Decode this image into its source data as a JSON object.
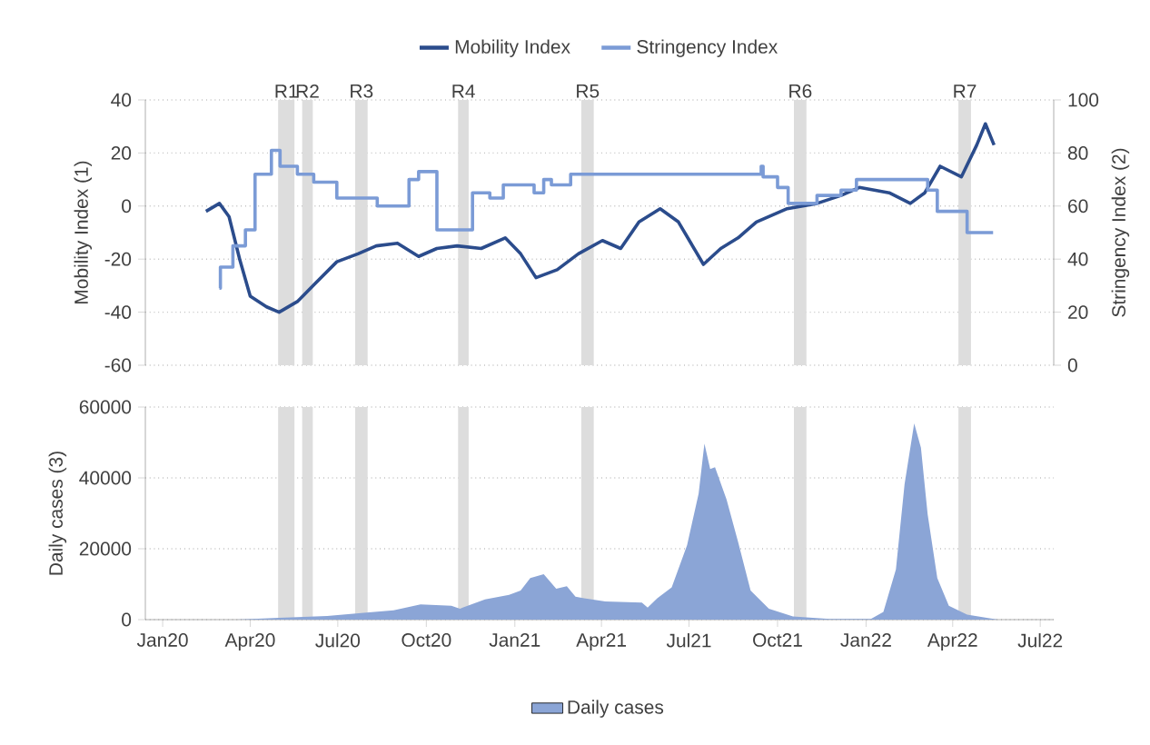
{
  "chart_data": [
    {
      "type": "line",
      "ylabel": "Mobility Index (1)",
      "y2label": "Stringency Index (2)",
      "xlim": [
        "2019-12-14",
        "2022-07-15"
      ],
      "ylim": [
        -60,
        40
      ],
      "yticks": [
        -60,
        -40,
        -20,
        0,
        20,
        40
      ],
      "y2lim": [
        0,
        100
      ],
      "y2ticks": [
        0,
        20,
        40,
        60,
        80,
        100
      ],
      "grid": "y",
      "legend": "top",
      "tick_labels": "y",
      "series": [
        {
          "name": "Mobility Index",
          "type": "line",
          "color": "#2b4c8c",
          "x": [
            "2020-02-15",
            "2020-02-29",
            "2020-03-10",
            "2020-03-21",
            "2020-04-01",
            "2020-04-18",
            "2020-05-01",
            "2020-05-20",
            "2020-06-08",
            "2020-06-30",
            "2020-07-22",
            "2020-08-10",
            "2020-09-01",
            "2020-09-23",
            "2020-10-12",
            "2020-11-02",
            "2020-11-27",
            "2020-12-22",
            "2021-01-07",
            "2021-01-23",
            "2021-02-14",
            "2021-03-08",
            "2021-04-02",
            "2021-04-21",
            "2021-05-10",
            "2021-06-01",
            "2021-06-20",
            "2021-07-16",
            "2021-08-03",
            "2021-08-21",
            "2021-09-09",
            "2021-10-11",
            "2021-11-11",
            "2021-12-06",
            "2021-12-25",
            "2022-01-25",
            "2022-02-16",
            "2022-03-03",
            "2022-03-19",
            "2022-04-10",
            "2022-04-26",
            "2022-05-05",
            "2022-05-14"
          ],
          "values": [
            -2,
            1,
            -4,
            -20,
            -34,
            -38,
            -40,
            -36,
            -29,
            -21,
            -18,
            -15,
            -14,
            -19,
            -16,
            -15,
            -16,
            -12,
            -18,
            -27,
            -24,
            -18,
            -13,
            -16,
            -6,
            -1,
            -6,
            -22,
            -16,
            -12,
            -6,
            -1,
            1,
            4,
            7,
            5,
            1,
            5,
            15,
            11,
            23,
            31,
            23
          ]
        },
        {
          "name": "Stringency Index",
          "type": "step",
          "axis": "y2",
          "color": "#7b9bd6",
          "x": [
            "2020-02-29",
            "2020-03-01",
            "2020-03-14",
            "2020-03-27",
            "2020-04-06",
            "2020-04-23",
            "2020-05-02",
            "2020-05-20",
            "2020-06-06",
            "2020-06-30",
            "2020-08-11",
            "2020-09-13",
            "2020-09-23",
            "2020-10-12",
            "2020-11-18",
            "2020-12-06",
            "2020-12-20",
            "2021-01-21",
            "2021-01-31",
            "2021-02-08",
            "2021-02-28",
            "2021-09-14",
            "2021-09-16",
            "2021-10-01",
            "2021-10-12",
            "2021-11-11",
            "2021-12-06",
            "2021-12-22",
            "2022-03-06",
            "2022-03-16",
            "2022-04-16",
            "2022-05-13"
          ],
          "values": [
            29,
            37,
            45,
            51,
            72,
            81,
            75,
            72,
            69,
            63,
            60,
            70,
            73,
            51,
            65,
            63,
            68,
            65,
            70,
            68,
            72,
            75,
            71,
            67,
            61,
            64,
            66,
            70,
            66,
            58,
            50,
            50
          ]
        }
      ],
      "bands": [
        {
          "axis": "x",
          "from": "2020-04-30",
          "to": "2020-05-17",
          "label": "R1",
          "color": "#dddddd"
        },
        {
          "axis": "x",
          "from": "2020-05-25",
          "to": "2020-06-05",
          "label": "R2",
          "color": "#dddddd"
        },
        {
          "axis": "x",
          "from": "2020-07-19",
          "to": "2020-08-01",
          "label": "R3",
          "color": "#dddddd"
        },
        {
          "axis": "x",
          "from": "2020-11-03",
          "to": "2020-11-14",
          "label": "R4",
          "color": "#dddddd"
        },
        {
          "axis": "x",
          "from": "2021-03-11",
          "to": "2021-03-24",
          "label": "R5",
          "color": "#dddddd"
        },
        {
          "axis": "x",
          "from": "2021-10-18",
          "to": "2021-10-31",
          "label": "R6",
          "color": "#dddddd"
        },
        {
          "axis": "x",
          "from": "2022-04-07",
          "to": "2022-04-20",
          "label": "R7",
          "color": "#dddddd"
        }
      ]
    },
    {
      "type": "area",
      "ylabel": "Daily cases (3)",
      "xlim": [
        "2019-12-14",
        "2022-07-15"
      ],
      "xticks": [
        {
          "value": "2020-01-01",
          "label": "Jan20"
        },
        {
          "value": "2020-04-01",
          "label": "Apr20"
        },
        {
          "value": "2020-07-01",
          "label": "Jul20"
        },
        {
          "value": "2020-10-01",
          "label": "Oct20"
        },
        {
          "value": "2021-01-01",
          "label": "Jan21"
        },
        {
          "value": "2021-04-01",
          "label": "Apr21"
        },
        {
          "value": "2021-07-01",
          "label": "Jul21"
        },
        {
          "value": "2021-10-01",
          "label": "Oct21"
        },
        {
          "value": "2022-01-01",
          "label": "Jan22"
        },
        {
          "value": "2022-04-01",
          "label": "Apr22"
        },
        {
          "value": "2022-07-01",
          "label": "Jul22"
        }
      ],
      "ylim": [
        0,
        60000
      ],
      "yticks": [
        0,
        20000,
        40000,
        60000
      ],
      "grid": "y",
      "legend": "bottom",
      "series": [
        {
          "name": "Daily cases",
          "color": "#8ba5d6",
          "x": [
            "2020-03-18",
            "2020-05-01",
            "2020-06-20",
            "2020-07-28",
            "2020-08-28",
            "2020-09-25",
            "2020-10-27",
            "2020-11-05",
            "2020-12-01",
            "2020-12-26",
            "2021-01-07",
            "2021-01-17",
            "2021-01-31",
            "2021-02-13",
            "2021-02-24",
            "2021-03-05",
            "2021-03-14",
            "2021-04-05",
            "2021-05-13",
            "2021-05-19",
            "2021-05-29",
            "2021-06-13",
            "2021-06-29",
            "2021-07-11",
            "2021-07-17",
            "2021-07-23",
            "2021-07-28",
            "2021-08-09",
            "2021-08-21",
            "2021-09-03",
            "2021-09-22",
            "2021-10-17",
            "2021-11-24",
            "2022-01-06",
            "2022-01-19",
            "2022-02-01",
            "2022-02-10",
            "2022-02-20",
            "2022-02-27",
            "2022-03-06",
            "2022-03-16",
            "2022-03-28",
            "2022-04-16",
            "2022-05-18"
          ],
          "values": [
            0,
            500,
            1000,
            1900,
            2600,
            4300,
            3900,
            3100,
            5700,
            7000,
            8200,
            11700,
            12800,
            8700,
            9400,
            6500,
            6000,
            5100,
            4800,
            3400,
            6000,
            9100,
            21000,
            35600,
            49700,
            42500,
            43000,
            33900,
            21900,
            8200,
            3100,
            900,
            200,
            200,
            2200,
            14200,
            38200,
            55400,
            48500,
            29700,
            11700,
            3900,
            1400,
            0
          ]
        }
      ],
      "bands": [
        {
          "axis": "x",
          "from": "2020-04-30",
          "to": "2020-05-17",
          "color": "#dddddd"
        },
        {
          "axis": "x",
          "from": "2020-05-25",
          "to": "2020-06-05",
          "color": "#dddddd"
        },
        {
          "axis": "x",
          "from": "2020-07-19",
          "to": "2020-08-01",
          "color": "#dddddd"
        },
        {
          "axis": "x",
          "from": "2020-11-03",
          "to": "2020-11-14",
          "color": "#dddddd"
        },
        {
          "axis": "x",
          "from": "2021-03-11",
          "to": "2021-03-24",
          "color": "#dddddd"
        },
        {
          "axis": "x",
          "from": "2021-10-18",
          "to": "2021-10-31",
          "color": "#dddddd"
        },
        {
          "axis": "x",
          "from": "2022-04-07",
          "to": "2022-04-20",
          "color": "#dddddd"
        }
      ]
    }
  ]
}
